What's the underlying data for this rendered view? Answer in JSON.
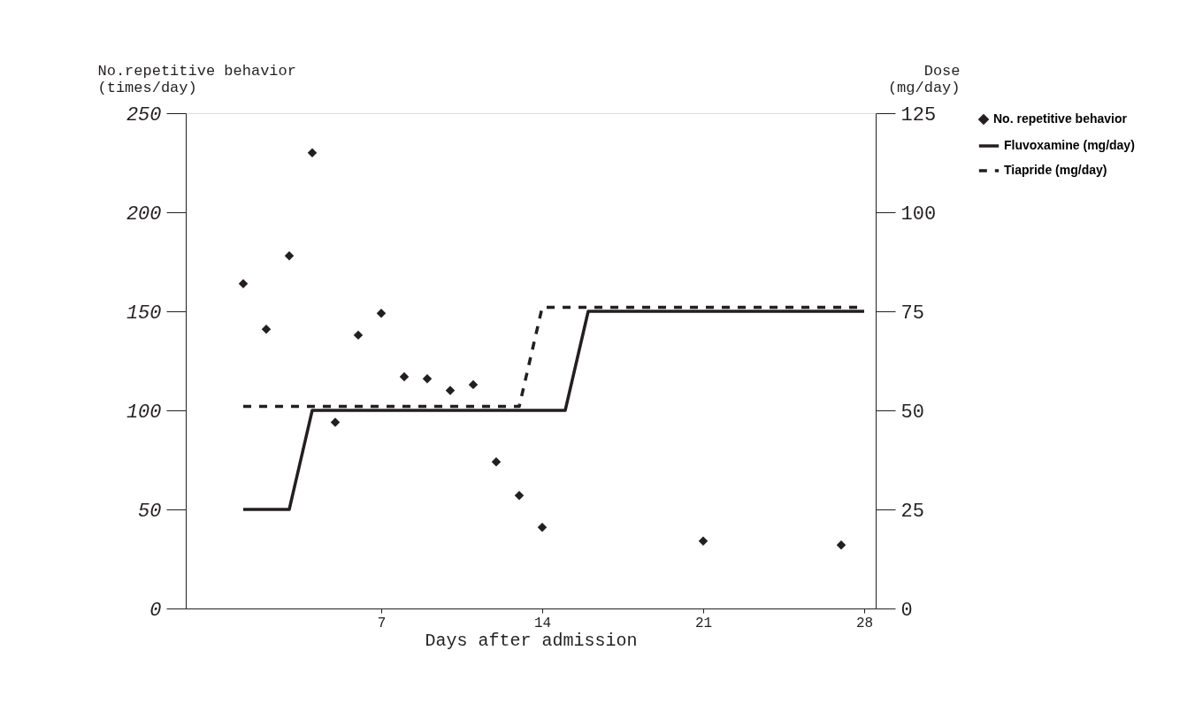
{
  "chart_data": {
    "type": "scatter",
    "xlabel": "Days after admission",
    "ylabel": "No.repetitive behavior\n(times/day)",
    "y2label": "Dose\n(mg/day)",
    "xlim": [
      -1.5,
      28.5
    ],
    "xticks": [
      7,
      14,
      21,
      28
    ],
    "ylim": [
      0,
      250
    ],
    "yticks": [
      0,
      50,
      100,
      150,
      200,
      250
    ],
    "y2lim": [
      0,
      125
    ],
    "y2ticks": [
      0,
      25,
      50,
      75,
      100,
      125
    ],
    "grid": false,
    "legend": "right",
    "series": [
      {
        "name": "No. repetitive behavior",
        "marker": "diamond",
        "color": "#231f20",
        "x": [
          1,
          2,
          3,
          4,
          5,
          6,
          7,
          8,
          9,
          10,
          11,
          12,
          13,
          14,
          21,
          27
        ],
        "values": [
          164,
          141,
          178,
          230,
          94,
          138,
          149,
          117,
          116,
          110,
          113,
          74,
          57,
          41,
          34,
          32
        ]
      },
      {
        "name": "Fluvoxamine (mg/day)",
        "type": "line",
        "axis": "y2",
        "marker": "none",
        "line_style": "solid",
        "color": "#231f20",
        "x": [
          1,
          3,
          4,
          15,
          16,
          28
        ],
        "values": [
          25,
          25,
          50,
          50,
          75,
          75
        ]
      },
      {
        "name": "Tiapride (mg/day)",
        "type": "line",
        "axis": "y2",
        "marker": "none",
        "line_style": "dashed",
        "color": "#231f20",
        "x": [
          1,
          13,
          14,
          28
        ],
        "values": [
          51,
          51,
          76,
          76
        ]
      }
    ]
  }
}
